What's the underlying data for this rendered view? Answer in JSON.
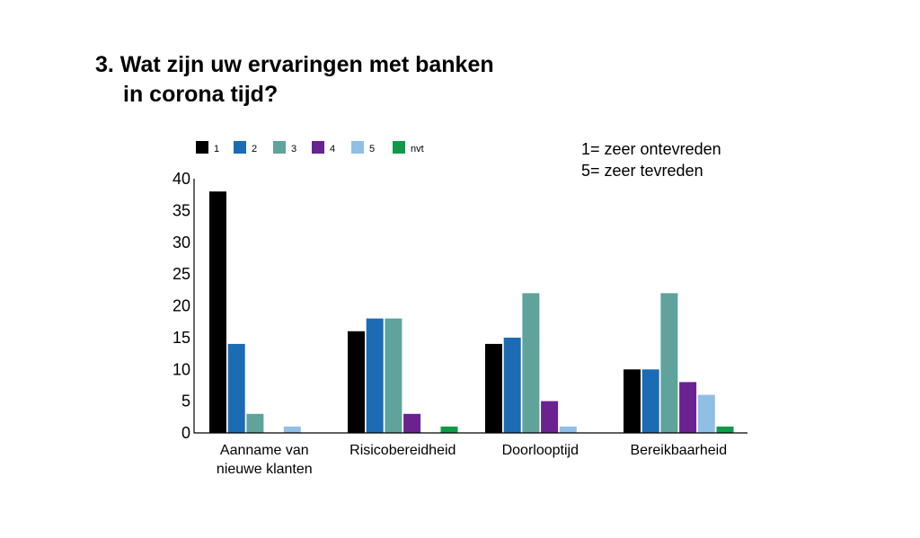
{
  "title": {
    "line1": "3. Wat zijn uw ervaringen met banken",
    "line2": "in corona tijd?"
  },
  "note": {
    "line1": "1= zeer ontevreden",
    "line2": "5= zeer tevreden"
  },
  "chart_data": {
    "type": "bar",
    "title": "3. Wat zijn uw ervaringen met banken in corona tijd?",
    "categories": [
      "Aanname van nieuwe klanten",
      "Risicobereidheid",
      "Doorlooptijd",
      "Bereikbaarheid"
    ],
    "category_lines": [
      [
        "Aanname van",
        "nieuwe klanten"
      ],
      [
        "Risicobereidheid"
      ],
      [
        "Doorlooptijd"
      ],
      [
        "Bereikbaarheid"
      ]
    ],
    "series": [
      {
        "name": "1",
        "color": "#000000",
        "values": [
          38,
          16,
          14,
          10
        ]
      },
      {
        "name": "2",
        "color": "#1b6cb5",
        "values": [
          14,
          18,
          15,
          10
        ]
      },
      {
        "name": "3",
        "color": "#5fa39b",
        "values": [
          3,
          18,
          22,
          22
        ]
      },
      {
        "name": "4",
        "color": "#6a2291",
        "values": [
          0,
          3,
          5,
          8
        ]
      },
      {
        "name": "5",
        "color": "#8fbfe6",
        "values": [
          1,
          0,
          1,
          6
        ]
      },
      {
        "name": "nvt",
        "color": "#0f9a48",
        "values": [
          0,
          1,
          0,
          1
        ]
      }
    ],
    "yticks": [
      0,
      5,
      10,
      15,
      20,
      25,
      30,
      35,
      40
    ],
    "ylim": [
      0,
      40
    ],
    "xlabel": "",
    "ylabel": "",
    "grid": false,
    "legend_position": "top-left"
  }
}
